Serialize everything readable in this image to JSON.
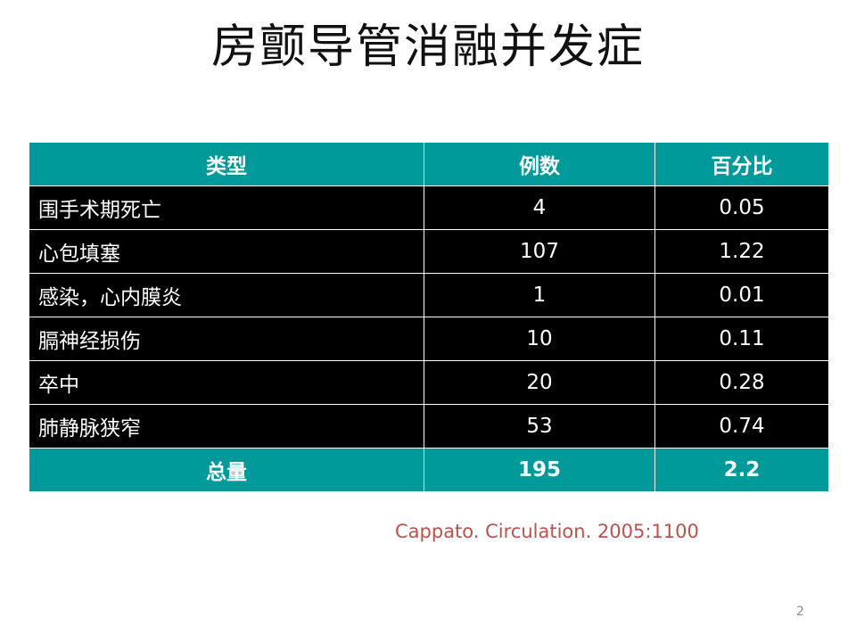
{
  "slide": {
    "title": "房颤导管消融并发症",
    "citation": "Cappato. Circulation. 2005:1100",
    "page_number": "2"
  },
  "table": {
    "headers": [
      "类型",
      "例数",
      "百分比"
    ],
    "rows": [
      {
        "type": "围手术期死亡",
        "count": "4",
        "percent": "0.05"
      },
      {
        "type": "心包填塞",
        "count": "107",
        "percent": "1.22"
      },
      {
        "type": "感染，心内膜炎",
        "count": "1",
        "percent": "0.01"
      },
      {
        "type": "膈神经损伤",
        "count": "10",
        "percent": "0.11"
      },
      {
        "type": "卒中",
        "count": "20",
        "percent": "0.28"
      },
      {
        "type": "肺静脉狭窄",
        "count": "53",
        "percent": "0.74"
      }
    ],
    "total": {
      "type": "总量",
      "count": "195",
      "percent": "2.2"
    }
  },
  "colors": {
    "header_bg": "#009a9a",
    "body_bg": "#000000",
    "text": "#ffffff",
    "citation": "#c0504d"
  }
}
